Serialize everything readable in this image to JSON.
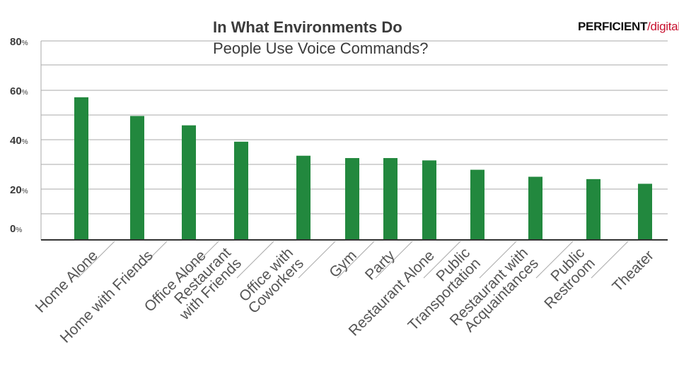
{
  "header": {
    "title": "In What Environments Do",
    "subtitle": "People Use Voice Commands?"
  },
  "logo": {
    "brand": "PERFICIENT",
    "slash": "/",
    "suffix": "digital"
  },
  "colors": {
    "bar": "#22883e",
    "grid": "#aaaaaa",
    "axis": "#333333",
    "text": "#3b3b3b",
    "logo_accent": "#c8102e"
  },
  "chart_data": {
    "type": "bar",
    "title": "In What Environments Do People Use Voice Commands?",
    "categories": [
      "Home Alone",
      "Home with Friends",
      "Office Alone",
      "Restaurant with Friends",
      "Office with Coworkers",
      "Gym",
      "Party",
      "Restaurant Alone",
      "Public Transportation",
      "Restaurant with Acquaintances",
      "Public Restroom",
      "Theater"
    ],
    "category_lines": [
      [
        "Home Alone"
      ],
      [
        "Home with Friends"
      ],
      [
        "Office Alone"
      ],
      [
        "Restaurant",
        "with Friends"
      ],
      [
        "Office with",
        "Coworkers"
      ],
      [
        "Gym"
      ],
      [
        "Party"
      ],
      [
        "Restaurant Alone"
      ],
      [
        "Public",
        "Transportation"
      ],
      [
        "Restaurant with",
        "Acquaintances"
      ],
      [
        "Public",
        "Restroom"
      ],
      [
        "Theater"
      ]
    ],
    "values": [
      61,
      53,
      49,
      42,
      36,
      35,
      35,
      34,
      30,
      27,
      26,
      24
    ],
    "ylim": [
      0,
      80
    ],
    "yticks": [
      {
        "value": 0,
        "label": "0",
        "unit": "%"
      },
      {
        "value": 20,
        "label": "20",
        "unit": "%"
      },
      {
        "value": 40,
        "label": "40",
        "unit": "%"
      },
      {
        "value": 60,
        "label": "60",
        "unit": "%"
      },
      {
        "value": 80,
        "label": "80",
        "unit": "%"
      }
    ],
    "grid": true,
    "xlabel": "",
    "ylabel": ""
  }
}
